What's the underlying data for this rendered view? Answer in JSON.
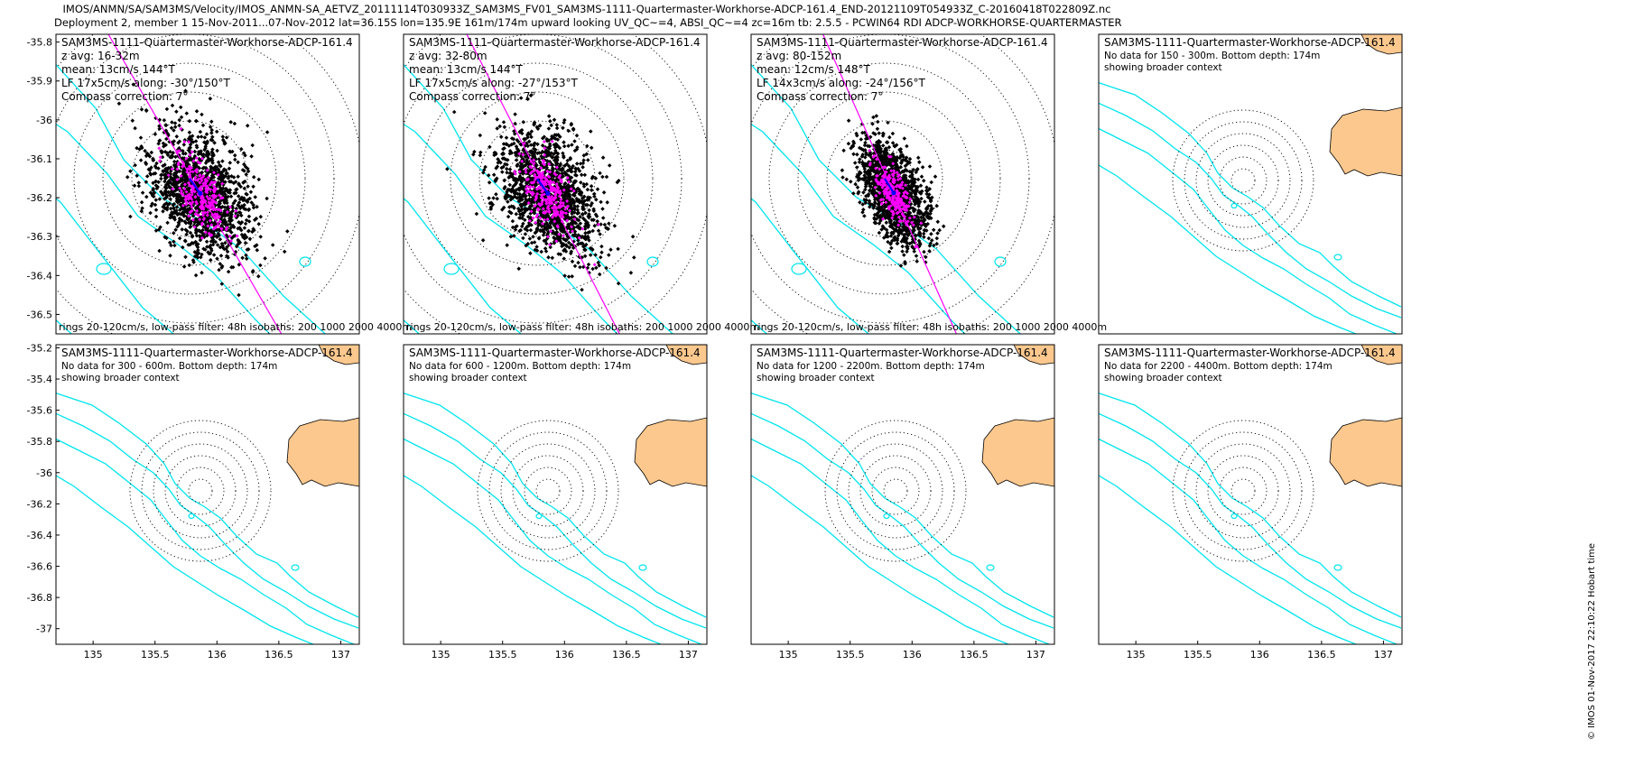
{
  "header": {
    "title_line1": "IMOS/ANMN/SA/SAM3MS/Velocity/IMOS_ANMN-SA_AETVZ_20111114T030933Z_SAM3MS_FV01_SAM3MS-1111-Quartermaster-Workhorse-ADCP-161.4_END-20121109T054933Z_C-20160418T022809Z.nc",
    "title_line2": "Deployment 2, member 1 15-Nov-2011...07-Nov-2012 lat=36.15S lon=135.9E 161m/174m upward looking UV_QC~=4, ABSI_QC~=4 zc=16m tb: 2.5.5 - PCWIN64 RDI ADCP-WORKHORSE-QUARTERMASTER"
  },
  "side_label": "© IMOS 01-Nov-2017  22:10:22 Hobart time",
  "colors": {
    "isobath": "#00e5ee",
    "land": "#fcc88e",
    "raw_points": "#000000",
    "lowpass_points": "#ff00ff",
    "mean_vector": "#0000ff",
    "principal_axis": "#ff00ff"
  },
  "chart_data": [
    {
      "type": "scatter",
      "panel": 1,
      "instrument": "SAM3MS-1111-Quartermaster-Workhorse-ADCP-161.4",
      "z_avg": "z avg: 16-32m",
      "mean": "mean: 13cm/s 144°T",
      "lf": "LF 17x5cm/s along: -30°/150°T",
      "compass": "Compass correction: 7°",
      "footer": "rings 20-120cm/s, low-pass filter: 48h isobaths: 200 1000 2000 4000m",
      "mean_speed_cms": 13,
      "mean_dir_degT": 144,
      "lf_major_cms": 17,
      "lf_minor_cms": 5,
      "along_dir_degT": 150,
      "rings_cms": [
        20,
        40,
        60,
        80,
        100,
        120
      ],
      "xlim": [
        135.45,
        136.35
      ],
      "ylim": [
        -36.55,
        -35.78
      ],
      "yticks": [
        -35.8,
        -35.9,
        -36,
        -36.1,
        -36.2,
        -36.3,
        -36.4,
        -36.5
      ]
    },
    {
      "type": "scatter",
      "panel": 2,
      "instrument": "SAM3MS-1111-Quartermaster-Workhorse-ADCP-161.4",
      "z_avg": "z avg: 32-80m",
      "mean": "mean: 13cm/s 144°T",
      "lf": "LF 17x5cm/s along: -27°/153°T",
      "compass": "Compass correction: 7°",
      "footer": "rings 20-120cm/s, low-pass filter: 48h isobaths: 200 1000 2000 4000m",
      "mean_speed_cms": 13,
      "mean_dir_degT": 144,
      "lf_major_cms": 17,
      "lf_minor_cms": 5,
      "along_dir_degT": 153,
      "rings_cms": [
        20,
        40,
        60,
        80,
        100,
        120
      ]
    },
    {
      "type": "scatter",
      "panel": 3,
      "instrument": "SAM3MS-1111-Quartermaster-Workhorse-ADCP-161.4",
      "z_avg": "z avg: 80-152m",
      "mean": "mean: 12cm/s 148°T",
      "lf": "LF 14x3cm/s along: -24°/156°T",
      "compass": "Compass correction: 7°",
      "footer": "rings 20-120cm/s, low-pass filter: 48h isobaths: 200 1000 2000 4000m",
      "mean_speed_cms": 12,
      "mean_dir_degT": 148,
      "lf_major_cms": 14,
      "lf_minor_cms": 3,
      "along_dir_degT": 156,
      "rings_cms": [
        20,
        40,
        60,
        80,
        100,
        120
      ]
    },
    {
      "type": "map",
      "panel": 4,
      "instrument": "SAM3MS-1111-Quartermaster-Workhorse-ADCP-161.4",
      "nodata": "No data for 150 - 300m. Bottom depth: 174m",
      "context": "showing broader context"
    },
    {
      "type": "map",
      "panel": 5,
      "instrument": "SAM3MS-1111-Quartermaster-Workhorse-ADCP-161.4",
      "nodata": "No data for 300 - 600m. Bottom depth: 174m",
      "context": "showing broader context",
      "xlim": [
        134.7,
        137.15
      ],
      "ylim": [
        -37.1,
        -35.18
      ],
      "xticks": [
        135,
        135.5,
        136,
        136.5,
        137
      ],
      "yticks": [
        -35.2,
        -35.4,
        -35.6,
        -35.8,
        -36,
        -36.2,
        -36.4,
        -36.6,
        -36.8,
        -37
      ]
    },
    {
      "type": "map",
      "panel": 6,
      "instrument": "SAM3MS-1111-Quartermaster-Workhorse-ADCP-161.4",
      "nodata": "No data for 600 - 1200m. Bottom depth: 174m",
      "context": "showing broader context",
      "xticks": [
        135,
        135.5,
        136,
        136.5,
        137
      ]
    },
    {
      "type": "map",
      "panel": 7,
      "instrument": "SAM3MS-1111-Quartermaster-Workhorse-ADCP-161.4",
      "nodata": "No data for 1200 - 2200m. Bottom depth: 174m",
      "context": "showing broader context",
      "xticks": [
        135,
        135.5,
        136,
        136.5,
        137
      ]
    },
    {
      "type": "map",
      "panel": 8,
      "instrument": "SAM3MS-1111-Quartermaster-Workhorse-ADCP-161.4",
      "nodata": "No data for 2200 - 4400m. Bottom depth: 174m",
      "context": "showing broader context",
      "xticks": [
        135,
        135.5,
        136,
        136.5,
        137
      ]
    }
  ]
}
